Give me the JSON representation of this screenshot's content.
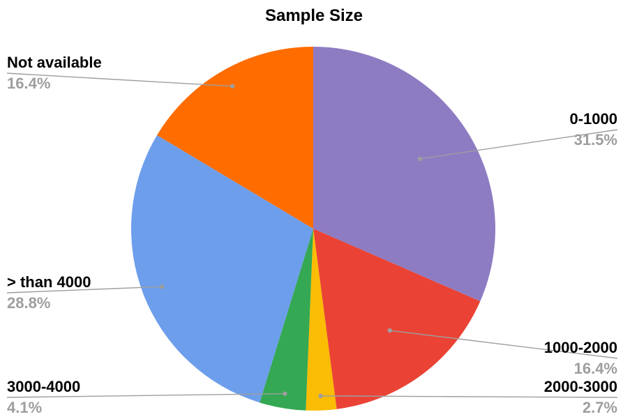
{
  "chart_data": {
    "type": "pie",
    "title": "Sample Size",
    "slices": [
      {
        "label": "0-1000",
        "value": 31.5,
        "percent_label": "31.5%",
        "color": "#8e7cc3"
      },
      {
        "label": "1000-2000",
        "value": 16.4,
        "percent_label": "16.4%",
        "color": "#ea4335"
      },
      {
        "label": "2000-3000",
        "value": 2.7,
        "percent_label": "2.7%",
        "color": "#fbbc04"
      },
      {
        "label": "3000-4000",
        "value": 4.1,
        "percent_label": "4.1%",
        "color": "#34a853"
      },
      {
        "label": "> than 4000",
        "value": 28.8,
        "percent_label": "28.8%",
        "color": "#6d9eeb"
      },
      {
        "label": "Not available",
        "value": 16.4,
        "percent_label": "16.4%",
        "color": "#ff6d01"
      }
    ],
    "start_angle": "top",
    "direction": "clockwise",
    "leader_line_color": "#9e9e9e",
    "legend": "labels beside slices"
  }
}
